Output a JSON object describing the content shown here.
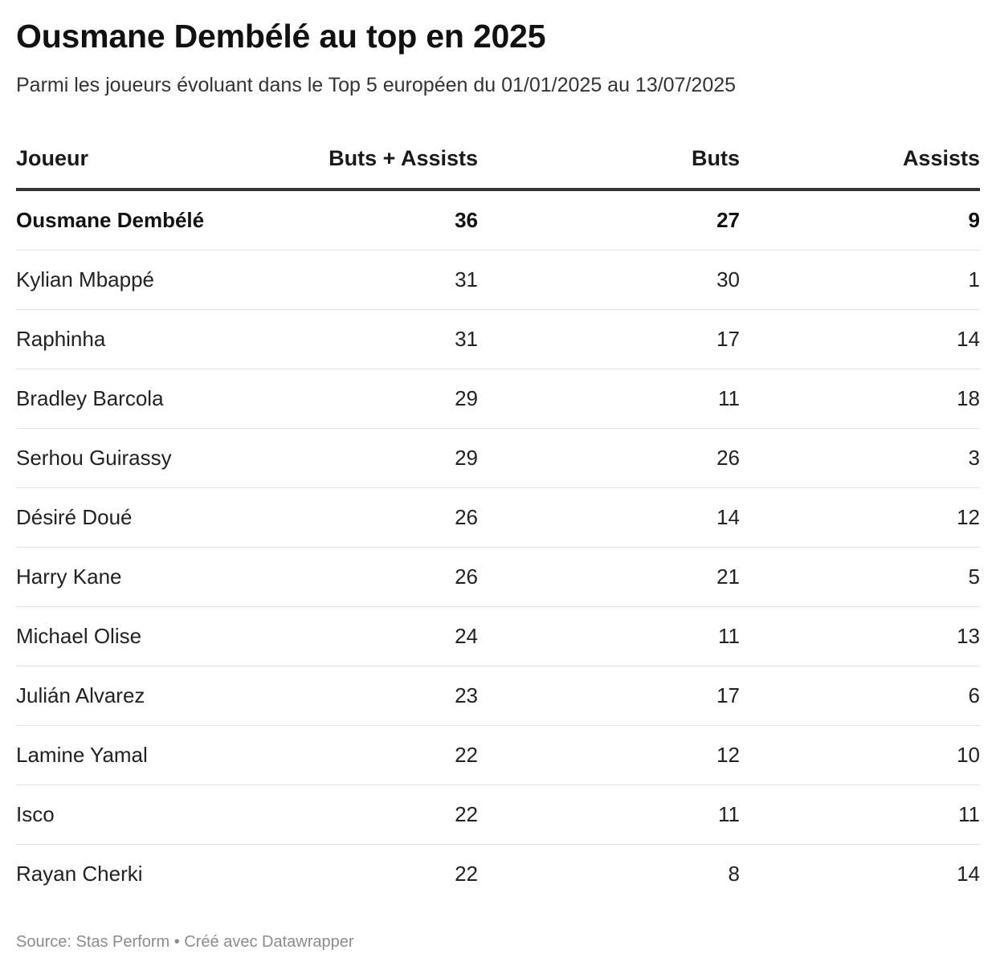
{
  "chart_data": {
    "type": "table",
    "title": "Ousmane Dembélé au top en 2025",
    "subtitle": "Parmi les joueurs évoluant dans le Top 5 européen du 01/01/2025 au 13/07/2025",
    "columns": [
      "Joueur",
      "Buts + Assists",
      "Buts",
      "Assists"
    ],
    "rows": [
      {
        "player": "Ousmane Dembélé",
        "total": "36",
        "goals": "27",
        "assists": "9",
        "highlight": true
      },
      {
        "player": "Kylian Mbappé",
        "total": "31",
        "goals": "30",
        "assists": "1"
      },
      {
        "player": "Raphinha",
        "total": "31",
        "goals": "17",
        "assists": "14"
      },
      {
        "player": "Bradley Barcola",
        "total": "29",
        "goals": "11",
        "assists": "18"
      },
      {
        "player": "Serhou Guirassy",
        "total": "29",
        "goals": "26",
        "assists": "3"
      },
      {
        "player": "Désiré Doué",
        "total": "26",
        "goals": "14",
        "assists": "12"
      },
      {
        "player": "Harry Kane",
        "total": "26",
        "goals": "21",
        "assists": "5"
      },
      {
        "player": "Michael Olise",
        "total": "24",
        "goals": "11",
        "assists": "13"
      },
      {
        "player": "Julián Alvarez",
        "total": "23",
        "goals": "17",
        "assists": "6"
      },
      {
        "player": "Lamine Yamal",
        "total": "22",
        "goals": "12",
        "assists": "10"
      },
      {
        "player": "Isco",
        "total": "22",
        "goals": "11",
        "assists": "11"
      },
      {
        "player": "Rayan Cherki",
        "total": "22",
        "goals": "8",
        "assists": "14"
      }
    ],
    "footer": "Source: Stas Perform • Créé avec Datawrapper"
  },
  "colors": {
    "text": "#1d1d1d",
    "header_rule": "#333333",
    "row_divider": "#e3e3e3",
    "footer": "#8c8c8c"
  }
}
